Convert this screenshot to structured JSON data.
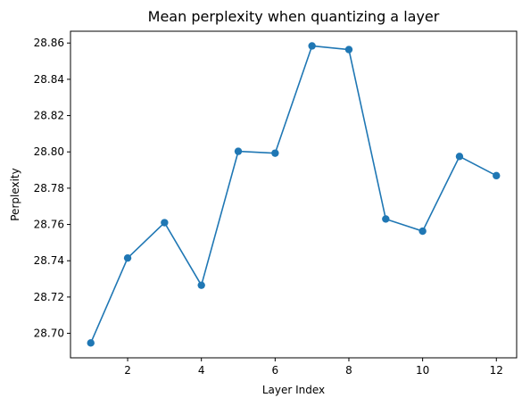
{
  "chart_data": {
    "type": "line",
    "title": "Mean perplexity when quantizing a layer",
    "xlabel": "Layer Index",
    "ylabel": "Perplexity",
    "x": [
      1,
      2,
      3,
      4,
      5,
      6,
      7,
      8,
      9,
      10,
      11,
      12
    ],
    "series": [
      {
        "values": [
          28.6947,
          28.7415,
          28.761,
          28.7265,
          28.8003,
          28.7993,
          28.8584,
          28.8564,
          28.763,
          28.7563,
          28.7975,
          28.7869
        ],
        "color": "#1f77b4",
        "marker": "circle"
      }
    ],
    "xlim": [
      0.45,
      12.55
    ],
    "ylim": [
      28.6865,
      28.8665
    ],
    "xticks": [
      2,
      4,
      6,
      8,
      10,
      12
    ],
    "yticks": [
      28.7,
      28.72,
      28.74,
      28.76,
      28.78,
      28.8,
      28.82,
      28.84,
      28.86
    ],
    "xtick_labels": [
      "2",
      "4",
      "6",
      "8",
      "10",
      "12"
    ],
    "ytick_labels": [
      "28.70",
      "28.72",
      "28.74",
      "28.76",
      "28.78",
      "28.80",
      "28.82",
      "28.84",
      "28.86"
    ],
    "grid": false,
    "legend": "none"
  }
}
